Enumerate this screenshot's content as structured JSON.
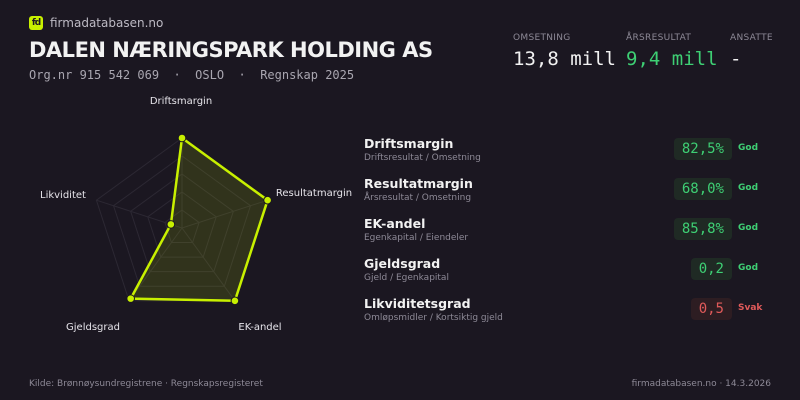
{
  "brand": {
    "logo_text": "fd",
    "name": "firmadatabasen.no"
  },
  "company": {
    "name": "DALEN NÆRINGSPARK HOLDING AS",
    "subtitle": "Org.nr 915 542 069  ·  OSLO  ·  Regnskap 2025"
  },
  "kpis": [
    {
      "label": "OMSETNING",
      "value": "13,8 mill",
      "color": "#f2f2f2"
    },
    {
      "label": "ÅRSRESULTAT",
      "value": "9,4 mill",
      "color": "#3ecf74"
    },
    {
      "label": "ANSATTE",
      "value": "-",
      "color": "#f2f2f2"
    }
  ],
  "chart_data": {
    "type": "radar",
    "axes": [
      "Driftsmargin",
      "Resultatmargin",
      "EK-andel",
      "Gjeldsgrad",
      "Likviditet"
    ],
    "values": [
      1.0,
      1.0,
      1.0,
      0.97,
      0.13
    ],
    "range": [
      0,
      1
    ],
    "rings": 5,
    "color": "#c8f000"
  },
  "metrics": [
    {
      "name": "Driftsmargin",
      "desc": "Driftsresultat / Omsetning",
      "value": "82,5%",
      "status": "God",
      "good": true
    },
    {
      "name": "Resultatmargin",
      "desc": "Årsresultat / Omsetning",
      "value": "68,0%",
      "status": "God",
      "good": true
    },
    {
      "name": "EK-andel",
      "desc": "Egenkapital / Eiendeler",
      "value": "85,8%",
      "status": "God",
      "good": true
    },
    {
      "name": "Gjeldsgrad",
      "desc": "Gjeld / Egenkapital",
      "value": "0,2",
      "status": "God",
      "good": true
    },
    {
      "name": "Likviditetsgrad",
      "desc": "Omløpsmidler / Kortsiktig gjeld",
      "value": "0,5",
      "status": "Svak",
      "good": false
    }
  ],
  "colors": {
    "good": "#3ecf74",
    "good_bg": "#1f2a24",
    "bad": "#e05a5a",
    "bad_bg": "#2d1d22"
  },
  "footer": {
    "source": "Kilde: Brønnøysundregistrene · Regnskapsregisteret",
    "site": "firmadatabasen.no · 14.3.2026"
  }
}
